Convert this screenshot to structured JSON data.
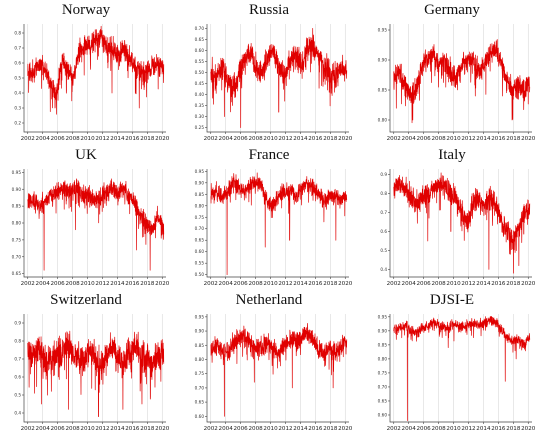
{
  "chart_data": [
    {
      "type": "line",
      "title": "Norway",
      "x": [
        2002,
        2004,
        2006,
        2008,
        2010,
        2012,
        2014,
        2016,
        2018,
        2020
      ],
      "xlim": [
        2001.5,
        2020.5
      ],
      "ylim": [
        0.14,
        0.86
      ],
      "ytick_labels": [
        "0.8",
        "0.7",
        "0.6",
        "0.5",
        "0.4",
        "0.3",
        "0.2"
      ],
      "series_color": "#e00000",
      "levels": [
        0.55,
        0.52,
        0.6,
        0.57,
        0.45,
        0.38,
        0.62,
        0.55,
        0.48,
        0.68,
        0.72,
        0.7,
        0.75,
        0.78,
        0.72,
        0.68,
        0.65,
        0.7,
        0.62,
        0.58,
        0.55,
        0.52,
        0.58,
        0.6,
        0.55
      ],
      "spikes": [
        [
          0.2,
          0.3
        ],
        [
          0.45,
          0.78
        ],
        [
          0.55,
          0.75
        ],
        [
          0.62,
          0.4
        ],
        [
          0.82,
          0.3
        ]
      ],
      "amp": 0.08
    },
    {
      "type": "line",
      "title": "Russia",
      "x": [
        2002,
        2004,
        2006,
        2008,
        2010,
        2012,
        2014,
        2016,
        2018,
        2020
      ],
      "xlim": [
        2001.5,
        2020.5
      ],
      "ylim": [
        0.23,
        0.72
      ],
      "ytick_labels": [
        "0.70",
        "0.65",
        "0.60",
        "0.55",
        "0.50",
        "0.45",
        "0.40",
        "0.35",
        "0.30",
        "0.25"
      ],
      "series_color": "#e00000",
      "levels": [
        0.5,
        0.48,
        0.52,
        0.47,
        0.42,
        0.5,
        0.55,
        0.6,
        0.52,
        0.5,
        0.56,
        0.6,
        0.52,
        0.48,
        0.55,
        0.58,
        0.52,
        0.6,
        0.62,
        0.58,
        0.52,
        0.5,
        0.48,
        0.52,
        0.5
      ],
      "spikes": [
        [
          0.22,
          0.25
        ],
        [
          0.1,
          0.3
        ],
        [
          0.75,
          0.7
        ],
        [
          0.5,
          0.32
        ]
      ],
      "amp": 0.06
    },
    {
      "type": "line",
      "title": "Germany",
      "x": [
        2002,
        2004,
        2006,
        2008,
        2010,
        2012,
        2014,
        2016,
        2018,
        2020
      ],
      "xlim": [
        2001.5,
        2020.5
      ],
      "ylim": [
        0.78,
        0.96
      ],
      "ytick_labels": [
        "0.95",
        "0.90",
        "0.85",
        "0.80"
      ],
      "series_color": "#e00000",
      "levels": [
        0.87,
        0.88,
        0.86,
        0.84,
        0.85,
        0.89,
        0.9,
        0.91,
        0.89,
        0.9,
        0.88,
        0.87,
        0.89,
        0.9,
        0.9,
        0.88,
        0.89,
        0.91,
        0.92,
        0.89,
        0.87,
        0.85,
        0.86,
        0.85,
        0.86
      ],
      "spikes": [
        [
          0.14,
          0.8
        ],
        [
          0.6,
          0.84
        ],
        [
          0.8,
          0.84
        ],
        [
          0.95,
          0.84
        ]
      ],
      "amp": 0.02
    },
    {
      "type": "line",
      "title": "UK",
      "x": [
        2002,
        2004,
        2006,
        2008,
        2010,
        2012,
        2014,
        2016,
        2018,
        2020
      ],
      "xlim": [
        2001.5,
        2020.5
      ],
      "ylim": [
        0.64,
        0.96
      ],
      "ytick_labels": [
        "0.95",
        "0.90",
        "0.85",
        "0.80",
        "0.75",
        "0.70",
        "0.65"
      ],
      "series_color": "#e00000",
      "levels": [
        0.86,
        0.87,
        0.85,
        0.86,
        0.88,
        0.89,
        0.9,
        0.9,
        0.89,
        0.9,
        0.88,
        0.88,
        0.87,
        0.88,
        0.89,
        0.9,
        0.89,
        0.9,
        0.88,
        0.86,
        0.82,
        0.8,
        0.78,
        0.82,
        0.78
      ],
      "spikes": [
        [
          0.12,
          0.66
        ],
        [
          0.35,
          0.78
        ],
        [
          0.8,
          0.72
        ],
        [
          0.9,
          0.66
        ]
      ],
      "amp": 0.03
    },
    {
      "type": "line",
      "title": "France",
      "x": [
        2002,
        2004,
        2006,
        2008,
        2010,
        2012,
        2014,
        2016,
        2018,
        2020
      ],
      "xlim": [
        2001.5,
        2020.5
      ],
      "ylim": [
        0.49,
        0.96
      ],
      "ytick_labels": [
        "0.95",
        "0.90",
        "0.85",
        "0.80",
        "0.75",
        "0.70",
        "0.65",
        "0.60",
        "0.55",
        "0.50"
      ],
      "series_color": "#e00000",
      "levels": [
        0.85,
        0.86,
        0.84,
        0.86,
        0.9,
        0.88,
        0.86,
        0.89,
        0.9,
        0.88,
        0.82,
        0.8,
        0.85,
        0.86,
        0.87,
        0.84,
        0.87,
        0.9,
        0.88,
        0.85,
        0.82,
        0.85,
        0.84,
        0.83,
        0.85
      ],
      "spikes": [
        [
          0.12,
          0.5
        ],
        [
          0.4,
          0.62
        ],
        [
          0.58,
          0.65
        ],
        [
          0.92,
          0.65
        ]
      ],
      "amp": 0.04
    },
    {
      "type": "line",
      "title": "Italy",
      "x": [
        2002,
        2004,
        2006,
        2008,
        2010,
        2012,
        2014,
        2016,
        2018,
        2020
      ],
      "xlim": [
        2001.5,
        2020.5
      ],
      "ylim": [
        0.36,
        0.93
      ],
      "ytick_labels": [
        "0.9",
        "0.8",
        "0.7",
        "0.6",
        "0.5",
        "0.4"
      ],
      "series_color": "#e00000",
      "levels": [
        0.82,
        0.85,
        0.83,
        0.78,
        0.75,
        0.78,
        0.8,
        0.82,
        0.85,
        0.84,
        0.8,
        0.78,
        0.7,
        0.65,
        0.75,
        0.78,
        0.72,
        0.78,
        0.75,
        0.65,
        0.6,
        0.55,
        0.62,
        0.7,
        0.72
      ],
      "spikes": [
        [
          0.25,
          0.55
        ],
        [
          0.42,
          0.6
        ],
        [
          0.7,
          0.4
        ],
        [
          0.88,
          0.38
        ],
        [
          0.92,
          0.42
        ]
      ],
      "amp": 0.06
    },
    {
      "type": "line",
      "title": "Switzerland",
      "x": [
        2002,
        2004,
        2006,
        2008,
        2010,
        2012,
        2014,
        2016,
        2018,
        2020
      ],
      "xlim": [
        2001.5,
        2020.5
      ],
      "ylim": [
        0.35,
        0.95
      ],
      "ytick_labels": [
        "0.9",
        "0.8",
        "0.7",
        "0.6",
        "0.5",
        "0.4"
      ],
      "series_color": "#e00000",
      "levels": [
        0.72,
        0.7,
        0.75,
        0.7,
        0.68,
        0.72,
        0.75,
        0.78,
        0.72,
        0.7,
        0.68,
        0.75,
        0.7,
        0.65,
        0.72,
        0.76,
        0.7,
        0.68,
        0.74,
        0.78,
        0.72,
        0.7,
        0.68,
        0.72,
        0.7
      ],
      "spikes": [
        [
          0.1,
          0.45
        ],
        [
          0.3,
          0.42
        ],
        [
          0.52,
          0.38
        ],
        [
          0.7,
          0.42
        ],
        [
          0.84,
          0.45
        ]
      ],
      "amp": 0.09
    },
    {
      "type": "line",
      "title": "Netherland",
      "x": [
        2002,
        2004,
        2006,
        2008,
        2010,
        2012,
        2014,
        2016,
        2018,
        2020
      ],
      "xlim": [
        2001.5,
        2020.5
      ],
      "ylim": [
        0.58,
        0.96
      ],
      "ytick_labels": [
        "0.95",
        "0.90",
        "0.85",
        "0.80",
        "0.75",
        "0.70",
        "0.65",
        "0.60"
      ],
      "series_color": "#e00000",
      "levels": [
        0.84,
        0.85,
        0.83,
        0.82,
        0.86,
        0.87,
        0.88,
        0.86,
        0.84,
        0.85,
        0.86,
        0.84,
        0.82,
        0.85,
        0.87,
        0.86,
        0.88,
        0.9,
        0.87,
        0.84,
        0.82,
        0.84,
        0.82,
        0.85,
        0.86
      ],
      "spikes": [
        [
          0.1,
          0.6
        ],
        [
          0.32,
          0.72
        ],
        [
          0.6,
          0.7
        ],
        [
          0.9,
          0.7
        ]
      ],
      "amp": 0.035
    },
    {
      "type": "line",
      "title": "DJSI-E",
      "x": [
        2002,
        2004,
        2006,
        2008,
        2010,
        2012,
        2014,
        2016,
        2018,
        2020
      ],
      "xlim": [
        2001.5,
        2020.5
      ],
      "ylim": [
        0.575,
        0.96
      ],
      "ytick_labels": [
        "0.95",
        "0.90",
        "0.85",
        "0.80",
        "0.75",
        "0.70",
        "0.65",
        "0.60"
      ],
      "series_color": "#e00000",
      "levels": [
        0.9,
        0.91,
        0.92,
        0.9,
        0.89,
        0.91,
        0.92,
        0.93,
        0.92,
        0.91,
        0.92,
        0.92,
        0.91,
        0.92,
        0.93,
        0.92,
        0.93,
        0.94,
        0.93,
        0.9,
        0.88,
        0.86,
        0.87,
        0.85,
        0.88
      ],
      "spikes": [
        [
          0.1,
          0.58
        ],
        [
          0.4,
          0.84
        ],
        [
          0.82,
          0.72
        ],
        [
          0.9,
          0.8
        ]
      ],
      "amp": 0.02
    }
  ]
}
